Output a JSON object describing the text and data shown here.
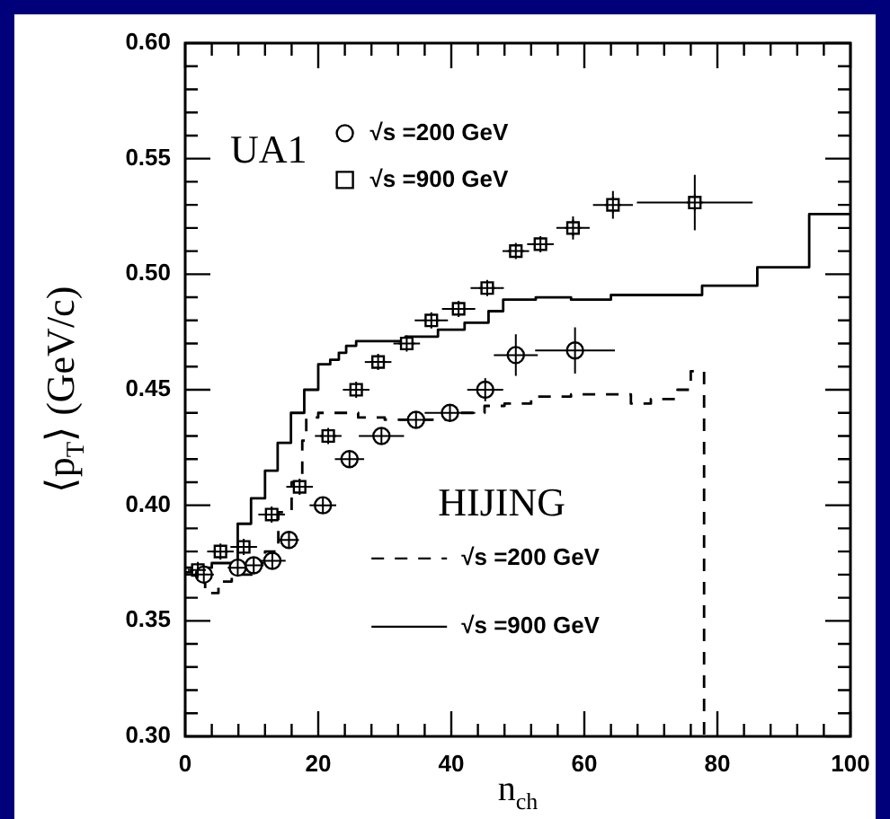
{
  "chart_data": {
    "type": "scatter",
    "xlabel": "n$_{ch}$",
    "ylabel": "⟨p$_{T}$⟩ (GeV/c)",
    "legend_title": "HIJING",
    "annotations": [
      "UA1"
    ],
    "legend": "top left",
    "grid": false,
    "xlim": [
      0,
      100
    ],
    "xticks": [
      0,
      {
        "value": 4,
        "label": null
      },
      {
        "value": 8,
        "label": null
      },
      {
        "value": 12,
        "label": null
      },
      {
        "value": 16,
        "label": null
      },
      20,
      {
        "value": 24,
        "label": null
      },
      {
        "value": 28,
        "label": null
      },
      {
        "value": 32,
        "label": null
      },
      {
        "value": 36,
        "label": null
      },
      40,
      {
        "value": 44,
        "label": null
      },
      {
        "value": 48,
        "label": null
      },
      {
        "value": 52,
        "label": null
      },
      {
        "value": 56,
        "label": null
      },
      60,
      {
        "value": 64,
        "label": null
      },
      {
        "value": 68,
        "label": null
      },
      {
        "value": 72,
        "label": null
      },
      {
        "value": 76,
        "label": null
      },
      80,
      {
        "value": 84,
        "label": null
      },
      {
        "value": 88,
        "label": null
      },
      {
        "value": 92,
        "label": null
      },
      {
        "value": 96,
        "label": null
      },
      100
    ],
    "ylim": [
      0.3,
      0.6
    ],
    "yticks": [
      {
        "value": 0.3,
        "label": "0.30"
      },
      {
        "value": 0.31,
        "label": null
      },
      {
        "value": 0.32,
        "label": null
      },
      {
        "value": 0.33,
        "label": null
      },
      {
        "value": 0.34,
        "label": null
      },
      {
        "value": 0.35,
        "label": "0.35"
      },
      {
        "value": 0.36,
        "label": null
      },
      {
        "value": 0.37,
        "label": null
      },
      {
        "value": 0.38,
        "label": null
      },
      {
        "value": 0.39,
        "label": null
      },
      {
        "value": 0.4,
        "label": "0.40"
      },
      {
        "value": 0.41,
        "label": null
      },
      {
        "value": 0.42,
        "label": null
      },
      {
        "value": 0.43,
        "label": null
      },
      {
        "value": 0.44,
        "label": null
      },
      {
        "value": 0.45,
        "label": "0.45"
      },
      {
        "value": 0.46,
        "label": null
      },
      {
        "value": 0.47,
        "label": null
      },
      {
        "value": 0.48,
        "label": null
      },
      {
        "value": 0.49,
        "label": null
      },
      {
        "value": 0.5,
        "label": "0.50"
      },
      {
        "value": 0.51,
        "label": null
      },
      {
        "value": 0.52,
        "label": null
      },
      {
        "value": 0.53,
        "label": null
      },
      {
        "value": 0.54,
        "label": null
      },
      {
        "value": 0.55,
        "label": "0.55"
      },
      {
        "value": 0.56,
        "label": null
      },
      {
        "value": 0.57,
        "label": null
      },
      {
        "value": 0.58,
        "label": null
      },
      {
        "value": 0.59,
        "label": null
      },
      {
        "value": 0.6,
        "label": "0.60"
      }
    ],
    "series": [
      {
        "name": "√s =200 GeV",
        "marker": "circle",
        "color": "#000000",
        "x": [
          2.8,
          7.9,
          10.3,
          13.1,
          15.6,
          20.7,
          24.7,
          29.5,
          34.7,
          39.8,
          45.1,
          49.7,
          58.6
        ],
        "values": [
          0.37,
          0.373,
          0.374,
          0.376,
          0.385,
          0.4,
          0.42,
          0.43,
          0.437,
          0.44,
          0.45,
          0.465,
          0.467
        ],
        "errors": [
          0.004,
          null,
          null,
          null,
          null,
          null,
          null,
          null,
          null,
          null,
          0.005,
          0.009,
          0.01
        ],
        "xerrors": [
          1.5,
          1.5,
          1.5,
          2,
          1.5,
          2,
          2.2,
          3.4,
          2.5,
          3.8,
          2.7,
          3.3,
          6
        ]
      },
      {
        "name": "√s =900 GeV",
        "marker": "square",
        "color": "#000000",
        "x": [
          1.9,
          5.3,
          8.8,
          13,
          17.2,
          21.5,
          25.7,
          29,
          33.3,
          37,
          41.1,
          45.4,
          49.7,
          53.4,
          58.3,
          64.3,
          76.6
        ],
        "values": [
          0.372,
          0.38,
          0.382,
          0.396,
          0.408,
          0.43,
          0.45,
          0.462,
          0.47,
          0.48,
          0.485,
          0.494,
          0.51,
          0.513,
          0.52,
          0.53,
          0.531
        ],
        "errors": [
          null,
          null,
          null,
          null,
          null,
          null,
          null,
          null,
          null,
          null,
          null,
          null,
          null,
          null,
          0.005,
          0.006,
          0.012
        ],
        "xerrors": [
          1.5,
          2,
          2,
          2,
          2,
          2,
          2,
          2,
          2,
          2.5,
          2.5,
          2.5,
          2,
          2,
          2.5,
          3,
          8.7
        ]
      },
      {
        "name": "√s =200 GeV",
        "type": "step",
        "line_style": "dashed",
        "color": "#000000",
        "x": [
          0,
          3,
          5,
          7,
          10,
          12,
          14,
          16,
          17.6,
          18.2,
          20,
          26,
          30,
          40,
          45,
          48,
          52,
          58,
          67,
          70,
          74,
          76,
          78
        ],
        "values": [
          0.371,
          0.362,
          0.367,
          0.37,
          0.375,
          0.38,
          0.397,
          0.41,
          0.428,
          0.438,
          0.44,
          0.438,
          0.437,
          0.44,
          0.443,
          0.444,
          0.447,
          0.448,
          0.444,
          0.446,
          0.45,
          0.458,
          0.3
        ]
      },
      {
        "name": "√s =900 GeV",
        "type": "step",
        "line_style": "solid",
        "color": "#000000",
        "x": [
          0,
          4,
          7.9,
          9.9,
          12,
          13.9,
          15.9,
          17.9,
          20,
          21.8,
          23.1,
          24.2,
          25.7,
          33.1,
          38,
          42,
          45.6,
          47.8,
          52.7,
          58,
          64,
          77.7,
          86,
          93.8,
          100
        ],
        "values": [
          0.373,
          0.375,
          0.392,
          0.403,
          0.415,
          0.427,
          0.44,
          0.45,
          0.461,
          0.463,
          0.466,
          0.469,
          0.471,
          0.473,
          0.476,
          0.479,
          0.484,
          0.489,
          0.49,
          0.489,
          0.491,
          0.495,
          0.503,
          0.526,
          0.526
        ]
      }
    ]
  }
}
